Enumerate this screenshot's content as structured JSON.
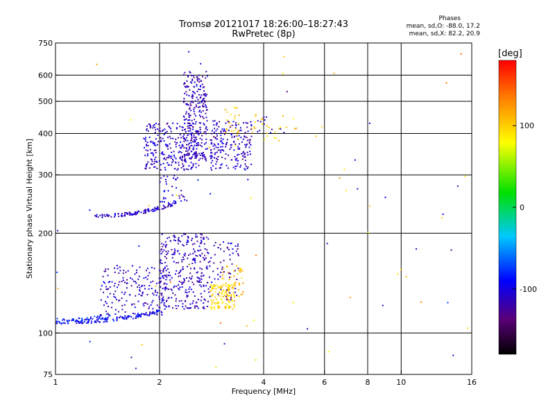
{
  "title": "Tromsø 20121017 18:26:00–18:27:43",
  "subtitle": "RwPretec (8p)",
  "phase_box": {
    "heading": "Phases",
    "line_o": "mean, sd,O: -88.0, 17.2",
    "line_x": "mean, sd,X:  82.2, 20.9"
  },
  "colorbar": {
    "unit": "[deg]",
    "range": [
      -180,
      180
    ],
    "ticks": [
      {
        "label": "100",
        "value": 100
      },
      {
        "label": "0",
        "value": 0
      },
      {
        "label": "-100",
        "value": -100
      }
    ]
  },
  "chart_data": {
    "type": "scatter",
    "title": "Tromsø 20121017 18:26:00–18:27:43",
    "subtitle": "RwPretec (8p)",
    "xlabel": "Frequency [MHz]",
    "ylabel": "Stationary phase Virtual Height [km]",
    "x_scale": "log",
    "y_scale": "log",
    "xlim": [
      1,
      16
    ],
    "ylim": [
      75,
      750
    ],
    "x_ticks": [
      {
        "label": "1",
        "value": 1
      },
      {
        "label": "2",
        "value": 2
      },
      {
        "label": "4",
        "value": 4
      },
      {
        "label": "6",
        "value": 6
      },
      {
        "label": "8",
        "value": 8
      },
      {
        "label": "10",
        "value": 10
      },
      {
        "label": "16",
        "value": 16
      }
    ],
    "y_ticks": [
      {
        "label": "75",
        "value": 75
      },
      {
        "label": "100",
        "value": 100
      },
      {
        "label": "200",
        "value": 200
      },
      {
        "label": "300",
        "value": 300
      },
      {
        "label": "400",
        "value": 400
      },
      {
        "label": "500",
        "value": 500
      },
      {
        "label": "600",
        "value": 600
      },
      {
        "label": "750",
        "value": 750
      }
    ],
    "grid_x": [
      2,
      4,
      6,
      8,
      10
    ],
    "grid_y": [
      100,
      200,
      300,
      400,
      500,
      600
    ],
    "grid": true,
    "color_by": "phase [deg]",
    "clusters": [
      {
        "f_range": [
          1.0,
          2.0
        ],
        "h_range": [
          108,
          116
        ],
        "phase": -95,
        "n": 140,
        "kind": "trace_low"
      },
      {
        "f_range": [
          1.0,
          1.45
        ],
        "h_range": [
          109,
          113
        ],
        "phase": -78,
        "n": 40,
        "kind": "trace_low"
      },
      {
        "f_range": [
          1.35,
          2.1
        ],
        "h_range": [
          113,
          160
        ],
        "phase": -110,
        "n": 180,
        "kind": "spread"
      },
      {
        "f_range": [
          2.0,
          2.8
        ],
        "h_range": [
          118,
          200
        ],
        "phase": -112,
        "n": 320,
        "kind": "spread"
      },
      {
        "f_range": [
          2.8,
          3.3
        ],
        "h_range": [
          118,
          140
        ],
        "phase": 95,
        "n": 120,
        "kind": "spread"
      },
      {
        "f_range": [
          3.0,
          3.5
        ],
        "h_range": [
          125,
          160
        ],
        "phase": 110,
        "n": 50,
        "kind": "spread"
      },
      {
        "f_range": [
          2.8,
          3.4
        ],
        "h_range": [
          125,
          190
        ],
        "phase": -115,
        "n": 60,
        "kind": "spread"
      },
      {
        "f_range": [
          1.3,
          2.2
        ],
        "h_range": [
          225,
          245
        ],
        "phase": -110,
        "n": 110,
        "kind": "trace_mid"
      },
      {
        "f_range": [
          2.0,
          2.4
        ],
        "h_range": [
          240,
          300
        ],
        "phase": -105,
        "n": 40,
        "kind": "spread"
      },
      {
        "f_range": [
          1.8,
          2.6
        ],
        "h_range": [
          310,
          430
        ],
        "phase": -110,
        "n": 260,
        "kind": "spread"
      },
      {
        "f_range": [
          2.35,
          2.75
        ],
        "h_range": [
          330,
          620
        ],
        "phase": -115,
        "n": 260,
        "kind": "spread"
      },
      {
        "f_range": [
          2.8,
          3.7
        ],
        "h_range": [
          310,
          440
        ],
        "phase": -112,
        "n": 200,
        "kind": "spread"
      },
      {
        "f_range": [
          3.1,
          3.4
        ],
        "h_range": [
          380,
          480
        ],
        "phase": 105,
        "n": 25,
        "kind": "spread"
      },
      {
        "f_range": [
          3.7,
          5.0
        ],
        "h_range": [
          380,
          460
        ],
        "phase": 100,
        "n": 25,
        "kind": "spread"
      },
      {
        "f_range": [
          3.8,
          4.6
        ],
        "h_range": [
          400,
          450
        ],
        "phase": -110,
        "n": 12,
        "kind": "spread"
      },
      {
        "f_range": [
          1.0,
          16.0
        ],
        "h_range": [
          76,
          720
        ],
        "phase": 0,
        "n": 70,
        "kind": "noise"
      }
    ]
  }
}
